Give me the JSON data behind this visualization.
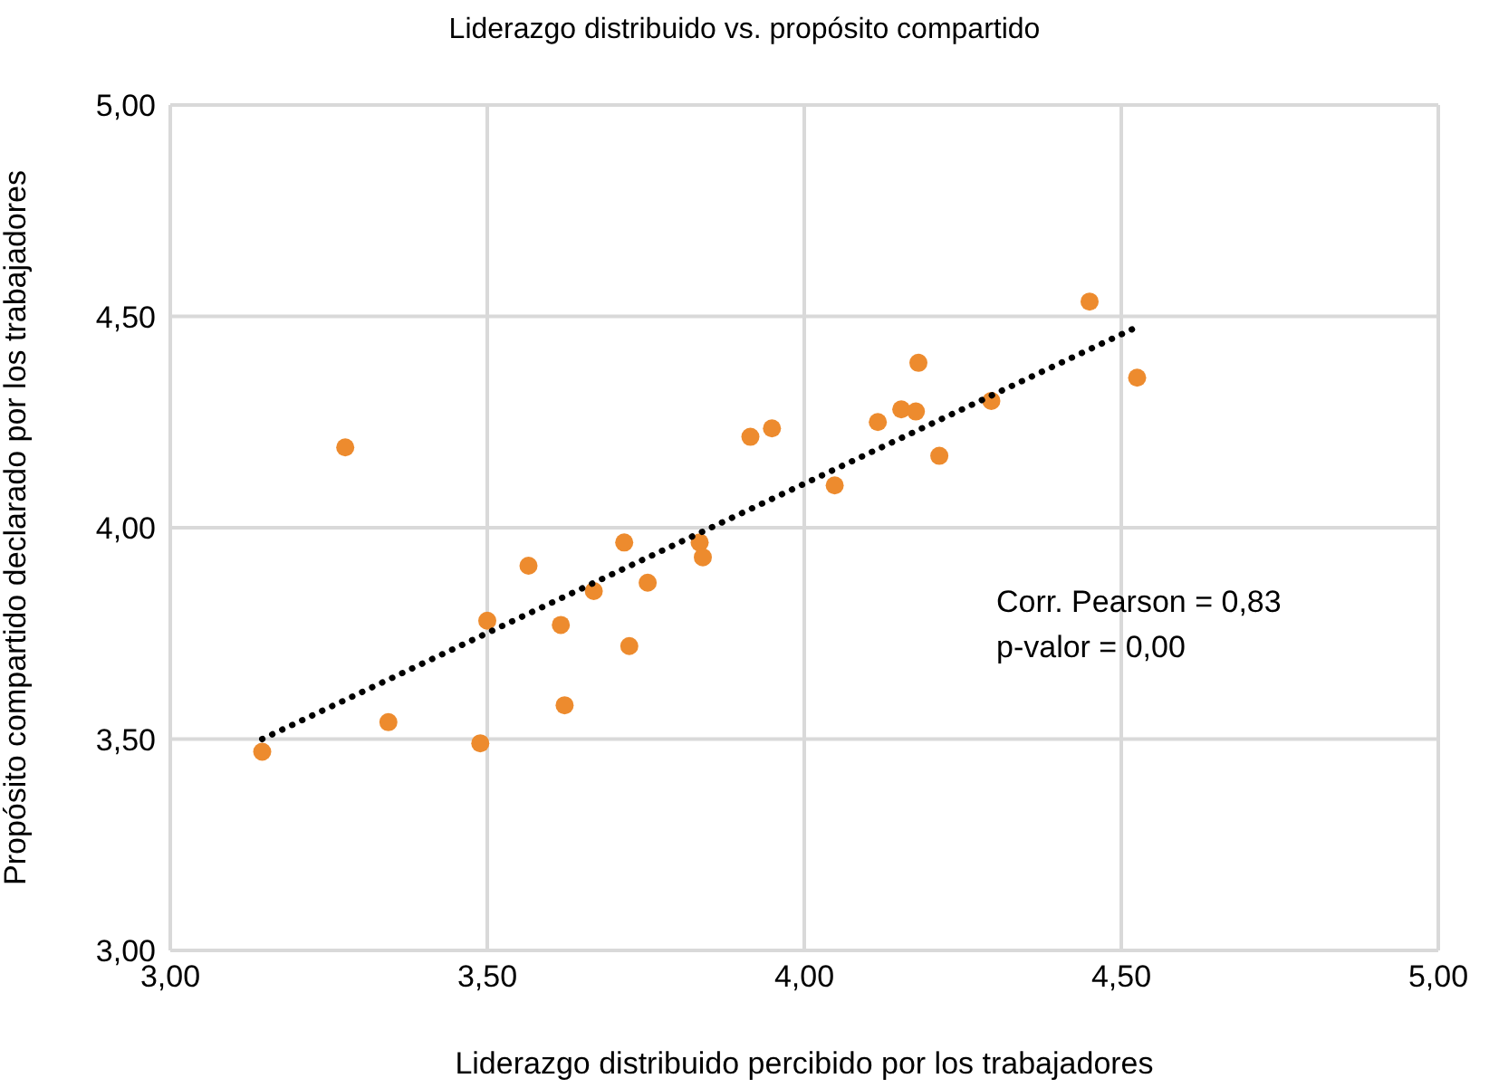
{
  "chart_data": {
    "type": "scatter",
    "title": "Liderazgo distribuido vs. propósito compartido",
    "xlabel": "Liderazgo distribuido percibido por los trabajadores",
    "ylabel": "Propósito compartido declarado por los trabajadores",
    "xlim": [
      3,
      5
    ],
    "xticks": [
      {
        "value": 3,
        "label": "3,00"
      },
      {
        "value": 3.5,
        "label": "3,50"
      },
      {
        "value": 4,
        "label": "4,00"
      },
      {
        "value": 4.5,
        "label": "4,50"
      },
      {
        "value": 5,
        "label": "5,00"
      }
    ],
    "ylim": [
      3,
      5
    ],
    "yticks": [
      {
        "value": 3,
        "label": "3,00"
      },
      {
        "value": 3.5,
        "label": "3,50"
      },
      {
        "value": 4,
        "label": "4,00"
      },
      {
        "value": 4.5,
        "label": "4,50"
      },
      {
        "value": 5,
        "label": "5,00"
      }
    ],
    "grid": true,
    "legend": false,
    "marker": "circle",
    "annotations": [
      "Corr. Pearson = 0,83",
      "p-valor = 0,00"
    ],
    "series": [
      {
        "color": "#ed8b2e",
        "x": [
          3.145,
          3.276,
          3.344,
          3.489,
          3.5,
          3.565,
          3.616,
          3.622,
          3.668,
          3.716,
          3.724,
          3.753,
          3.835,
          3.84,
          3.915,
          3.949,
          4.048,
          4.116,
          4.153,
          4.176,
          4.18,
          4.213,
          4.295,
          4.45,
          4.525
        ],
        "values": [
          3.47,
          4.19,
          3.54,
          3.49,
          3.78,
          3.91,
          3.77,
          3.58,
          3.85,
          3.965,
          3.72,
          3.87,
          3.965,
          3.93,
          4.215,
          4.235,
          4.1,
          4.25,
          4.28,
          4.275,
          4.39,
          4.17,
          4.3,
          4.535,
          4.355
        ]
      },
      {
        "type": "line",
        "color": "#000000",
        "line_style": "dotted",
        "marker": "none",
        "x": [
          3.145,
          4.525
        ],
        "values": [
          3.5,
          4.475
        ]
      }
    ]
  }
}
